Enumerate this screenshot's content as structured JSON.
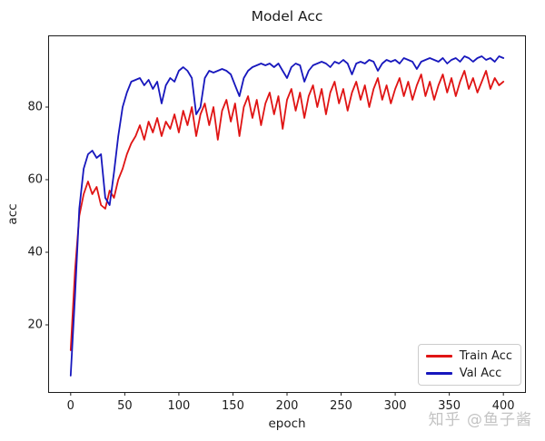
{
  "watermark": {
    "text": "知乎 @鱼子酱",
    "color": "#c3c3c3"
  },
  "chart_data": {
    "type": "line",
    "title": "Model Acc",
    "xlabel": "epoch",
    "ylabel": "acc",
    "xlim": [
      -20,
      420
    ],
    "ylim": [
      1.5,
      99.5
    ],
    "x_ticks": [
      0,
      50,
      100,
      150,
      200,
      250,
      300,
      350,
      400
    ],
    "y_ticks": [
      20,
      40,
      60,
      80
    ],
    "grid": false,
    "legend_position": "lower right",
    "x": [
      0,
      4,
      8,
      12,
      16,
      20,
      24,
      28,
      32,
      36,
      40,
      44,
      48,
      52,
      56,
      60,
      64,
      68,
      72,
      76,
      80,
      84,
      88,
      92,
      96,
      100,
      104,
      108,
      112,
      116,
      120,
      124,
      128,
      132,
      136,
      140,
      144,
      148,
      152,
      156,
      160,
      164,
      168,
      172,
      176,
      180,
      184,
      188,
      192,
      196,
      200,
      204,
      208,
      212,
      216,
      220,
      224,
      228,
      232,
      236,
      240,
      244,
      248,
      252,
      256,
      260,
      264,
      268,
      272,
      276,
      280,
      284,
      288,
      292,
      296,
      300,
      304,
      308,
      312,
      316,
      320,
      324,
      328,
      332,
      336,
      340,
      344,
      348,
      352,
      356,
      360,
      364,
      368,
      372,
      376,
      380,
      384,
      388,
      392,
      396,
      400
    ],
    "series": [
      {
        "name": "Train Acc",
        "color": "#e01414",
        "values": [
          13,
          35,
          50,
          56,
          59.5,
          56,
          58,
          53,
          52,
          57,
          55,
          60,
          63,
          67,
          70,
          72,
          75,
          71,
          76,
          73,
          77,
          72,
          76,
          74,
          78,
          73,
          79,
          75,
          80,
          72,
          78,
          81,
          75,
          80,
          71,
          79,
          82,
          76,
          81,
          72,
          80,
          83,
          77,
          82,
          75,
          81,
          84,
          78,
          83,
          74,
          82,
          85,
          79,
          84,
          77,
          83,
          86,
          80,
          85,
          78,
          84,
          87,
          81,
          85,
          79,
          84,
          87,
          82,
          86,
          80,
          85,
          88,
          82,
          86,
          81,
          85,
          88,
          83,
          87,
          82,
          86,
          89,
          83,
          87,
          82,
          86,
          89,
          84,
          88,
          83,
          87,
          90,
          85,
          88,
          84,
          87,
          90,
          85,
          88,
          86,
          87
        ]
      },
      {
        "name": "Val Acc",
        "color": "#1717bd",
        "values": [
          6,
          28,
          52,
          63,
          67,
          68,
          66,
          67,
          55,
          53,
          62,
          72,
          80,
          84,
          87,
          87.5,
          88,
          86,
          87.5,
          85,
          87,
          81,
          86,
          88,
          87,
          90,
          91,
          90,
          88,
          78,
          80,
          88,
          90,
          89.5,
          90,
          90.5,
          90,
          89,
          86,
          83,
          88,
          90,
          91,
          91.5,
          92,
          91.5,
          92,
          91,
          92,
          90,
          88,
          91,
          92,
          91.5,
          87,
          90,
          91.5,
          92,
          92.5,
          92,
          91,
          92.5,
          92,
          93,
          92,
          89,
          92,
          92.5,
          92,
          93,
          92.5,
          90,
          92,
          93,
          92.5,
          93,
          92,
          93.5,
          93,
          92.5,
          90.5,
          92.5,
          93,
          93.5,
          93,
          92.5,
          93.5,
          92,
          93,
          93.5,
          92.5,
          94,
          93.5,
          92.5,
          93.5,
          94,
          93,
          93.5,
          92.5,
          94,
          93.5
        ]
      }
    ]
  }
}
